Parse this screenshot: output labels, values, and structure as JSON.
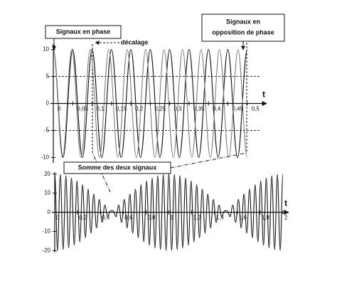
{
  "chart_data": [
    {
      "type": "line",
      "xlabel": "t",
      "xlim": [
        0,
        0.55
      ],
      "ylim": [
        -11,
        11
      ],
      "xticks": [
        0,
        {
          "value": 0.05,
          "label": "0,05"
        },
        {
          "value": 0.1,
          "label": "0,1"
        },
        {
          "value": 0.15,
          "label": "0,15"
        },
        {
          "value": 0.2,
          "label": "0,2"
        },
        {
          "value": 0.25,
          "label": "0,25"
        },
        {
          "value": 0.3,
          "label": "0,3"
        },
        {
          "value": 0.35,
          "label": "0,35"
        },
        {
          "value": 0.4,
          "label": "0,4"
        },
        {
          "value": 0.45,
          "label": "0,45"
        },
        {
          "value": 0.5,
          "label": "0,5"
        }
      ],
      "yticks": [
        -10,
        -5,
        0,
        5,
        10
      ],
      "reference_lines": [
        -5,
        5
      ],
      "annotations": {
        "in_phase": "Signaux en phase",
        "shift": "décalage",
        "opposition": [
          "Signaux en",
          "opposition de phase"
        ]
      },
      "series": [
        {
          "color": "#111111",
          "x": [
            0,
            0.025,
            0.05,
            0.075,
            0.1,
            0.125,
            0.15,
            0.175,
            0.2,
            0.225,
            0.25,
            0.275,
            0.3,
            0.325,
            0.35,
            0.375,
            0.4,
            0.425,
            0.45,
            0.475,
            0.5
          ],
          "values": [
            10,
            -10,
            10,
            -10,
            10,
            -10,
            10,
            -10,
            10,
            -10,
            10,
            -10,
            10,
            -10,
            10,
            -10,
            10,
            -10,
            10,
            -10,
            10
          ]
        },
        {
          "color": "#808080",
          "x": [
            0,
            0.0238,
            0.0476,
            0.0714,
            0.0952,
            0.119,
            0.1429,
            0.1667,
            0.1905,
            0.2143,
            0.2381,
            0.2619,
            0.2857,
            0.3095,
            0.3333,
            0.3571,
            0.381,
            0.4048,
            0.4286,
            0.4524,
            0.4762,
            0.5
          ],
          "values": [
            10,
            -10,
            10,
            -10,
            10,
            -10,
            10,
            -10,
            10,
            -10,
            10,
            -10,
            10,
            -10,
            10,
            -10,
            10,
            -10,
            10,
            -10,
            10,
            -10
          ]
        }
      ]
    },
    {
      "type": "line",
      "xlabel": "t",
      "xlim": [
        0,
        2.05
      ],
      "ylim": [
        -21,
        21
      ],
      "xticks": [
        0,
        {
          "value": 0.2,
          "label": "0,2"
        },
        {
          "value": 0.4,
          "label": "0,4"
        },
        {
          "value": 0.6,
          "label": "0,6"
        },
        {
          "value": 0.8,
          "label": "0,8"
        },
        1,
        {
          "value": 1.2,
          "label": "1,2"
        },
        {
          "value": 1.4,
          "label": "1,4"
        },
        {
          "value": 1.6,
          "label": "1,6"
        },
        {
          "value": 1.8,
          "label": "1,8"
        },
        2
      ],
      "yticks": [
        -20,
        -10,
        0,
        10,
        20
      ],
      "annotation": "Somme des deux signaux",
      "series": [
        {
          "color": "#111111",
          "x": [
            0,
            0.0244,
            0.0488,
            0.0732,
            0.0976,
            0.122,
            0.1463,
            0.1707,
            0.1951,
            0.2195,
            0.2439,
            0.2683,
            0.2927,
            0.3171,
            0.3415,
            0.3659,
            0.3902,
            0.4146,
            0.439,
            0.4634,
            0.4878,
            0.5122,
            0.5366,
            0.561,
            0.5854,
            0.6098,
            0.6341,
            0.6585,
            0.6829,
            0.7073,
            0.7317,
            0.7561,
            0.7805,
            0.8049,
            0.8293,
            0.8537,
            0.878,
            0.9024,
            0.9268,
            0.9512,
            0.9756,
            1,
            1.0244,
            1.0488,
            1.0732,
            1.0976,
            1.122,
            1.1463,
            1.1707,
            1.1951,
            1.2195,
            1.2439,
            1.2683,
            1.2927,
            1.3171,
            1.3415,
            1.3659,
            1.3902,
            1.4146,
            1.439,
            1.4634,
            1.4878,
            1.5122,
            1.5366,
            1.561,
            1.5854,
            1.6098,
            1.6341,
            1.6585,
            1.6829,
            1.7073,
            1.7317,
            1.7561,
            1.7805,
            1.8049,
            1.8293,
            1.8537,
            1.878,
            1.9024,
            1.9268,
            1.9512,
            1.9756,
            2
          ],
          "values": [
            20,
            -19.94,
            19.77,
            -19.47,
            19.07,
            -18.55,
            17.92,
            -17.19,
            16.36,
            -15.43,
            14.41,
            -13.31,
            12.13,
            -10.87,
            9.56,
            -8.18,
            6.76,
            -5.3,
            3.81,
            -2.3,
            0.77,
            0.77,
            -2.3,
            3.81,
            -5.3,
            6.76,
            -8.18,
            9.56,
            -10.87,
            12.13,
            -13.31,
            14.41,
            -15.43,
            16.36,
            -17.19,
            17.92,
            -18.55,
            19.07,
            -19.47,
            19.77,
            -19.94,
            20,
            -19.94,
            19.77,
            -19.47,
            19.07,
            -18.55,
            17.92,
            -17.19,
            16.36,
            -15.43,
            14.41,
            -13.31,
            12.13,
            -10.87,
            9.56,
            -8.18,
            6.76,
            -5.3,
            3.81,
            -2.3,
            0.77,
            0.77,
            -2.3,
            3.81,
            -5.3,
            6.76,
            -8.18,
            9.56,
            -10.87,
            12.13,
            -13.31,
            14.41,
            -15.43,
            16.36,
            -17.19,
            17.92,
            -18.55,
            19.07,
            -19.47,
            19.77,
            -19.94,
            20
          ]
        }
      ]
    }
  ]
}
